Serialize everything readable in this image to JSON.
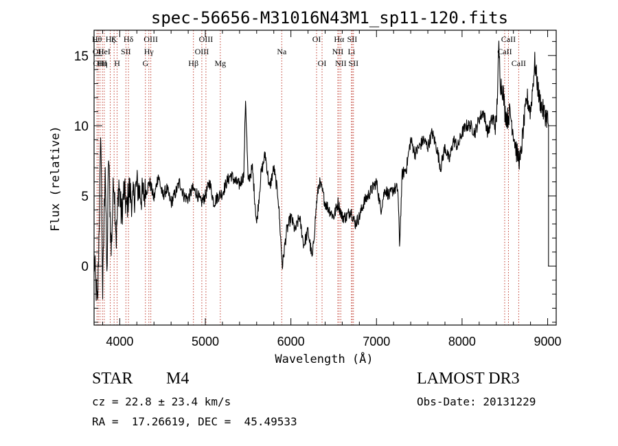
{
  "chart_data": {
    "type": "line",
    "title": "spec-56656-M31016N43M1_sp11-120.fits",
    "xlabel": "Wavelength (Å)",
    "ylabel": "Flux (relative)",
    "xlim": [
      3700,
      9100
    ],
    "ylim": [
      -4.2,
      16.8
    ],
    "xticks": [
      4000,
      5000,
      6000,
      7000,
      8000,
      9000
    ],
    "yticks": [
      0,
      5,
      10,
      15
    ],
    "series": [
      {
        "name": "flux",
        "x": [
          3700,
          3740,
          3780,
          3800,
          3830,
          3850,
          3870,
          3900,
          3930,
          3960,
          3990,
          4020,
          4050,
          4080,
          4110,
          4150,
          4200,
          4250,
          4300,
          4350,
          4400,
          4450,
          4500,
          4550,
          4600,
          4650,
          4700,
          4750,
          4800,
          4850,
          4900,
          4950,
          5000,
          5050,
          5100,
          5150,
          5200,
          5250,
          5300,
          5350,
          5400,
          5450,
          5470,
          5500,
          5550,
          5600,
          5650,
          5700,
          5750,
          5800,
          5850,
          5880,
          5900,
          5920,
          5950,
          6000,
          6050,
          6100,
          6150,
          6200,
          6250,
          6300,
          6330,
          6360,
          6400,
          6450,
          6500,
          6550,
          6600,
          6650,
          6700,
          6750,
          6800,
          6850,
          6900,
          6950,
          7000,
          7050,
          7100,
          7150,
          7200,
          7250,
          7270,
          7300,
          7350,
          7400,
          7450,
          7500,
          7550,
          7600,
          7650,
          7700,
          7750,
          7800,
          7850,
          7900,
          7950,
          8000,
          8050,
          8100,
          8150,
          8200,
          8250,
          8300,
          8350,
          8400,
          8430,
          8450,
          8480,
          8500,
          8530,
          8560,
          8600,
          8640,
          8680,
          8720,
          8760,
          8800,
          8850,
          8900,
          8950,
          9000,
          9010
        ],
        "y": [
          0.5,
          -3.0,
          9.5,
          -2.0,
          7.5,
          -1.0,
          8.0,
          1.0,
          6.5,
          2.0,
          6.0,
          3.5,
          5.5,
          4.0,
          5.5,
          4.5,
          5.8,
          5.0,
          5.2,
          6.0,
          4.8,
          6.5,
          5.0,
          5.5,
          4.5,
          5.2,
          6.0,
          5.0,
          4.8,
          5.5,
          5.2,
          4.5,
          5.0,
          6.0,
          4.5,
          5.0,
          5.2,
          6.0,
          6.5,
          6.0,
          5.8,
          6.5,
          12.0,
          6.0,
          7.0,
          3.0,
          6.5,
          8.0,
          5.5,
          7.0,
          5.0,
          2.0,
          0.0,
          1.0,
          2.5,
          3.5,
          2.5,
          3.5,
          1.5,
          2.5,
          0.5,
          4.5,
          6.0,
          5.5,
          4.5,
          4.0,
          3.5,
          4.5,
          3.5,
          3.5,
          4.0,
          3.0,
          3.5,
          4.5,
          5.0,
          5.5,
          6.0,
          4.0,
          5.5,
          5.0,
          5.5,
          5.5,
          1.5,
          6.5,
          7.0,
          9.0,
          8.0,
          8.5,
          9.0,
          8.5,
          9.5,
          8.5,
          7.0,
          8.5,
          7.5,
          9.0,
          8.5,
          9.5,
          10.0,
          10.0,
          9.5,
          10.5,
          11.0,
          9.5,
          10.5,
          10.0,
          15.5,
          13.0,
          12.5,
          11.0,
          10.5,
          11.0,
          9.5,
          8.0,
          7.5,
          10.0,
          12.0,
          11.0,
          14.5,
          12.0,
          11.0,
          10.5,
          10.0
        ]
      }
    ],
    "lines": [
      {
        "x": 3734,
        "label": "Hθ",
        "row": 0
      },
      {
        "x": 3750,
        "label": "OII",
        "row": 1
      },
      {
        "x": 3770,
        "label": "OIII",
        "row": 2
      },
      {
        "x": 3798,
        "label": "Hη",
        "row": 2
      },
      {
        "x": 3819,
        "label": "HeI",
        "row": 1
      },
      {
        "x": 3889,
        "label": "Hζ",
        "row": 0
      },
      {
        "x": 3934,
        "label": "K",
        "row": 0
      },
      {
        "x": 3969,
        "label": "H",
        "row": 2
      },
      {
        "x": 4072,
        "label": "SII",
        "row": 1
      },
      {
        "x": 4102,
        "label": "Hδ",
        "row": 0
      },
      {
        "x": 4300,
        "label": "G",
        "row": 2
      },
      {
        "x": 4340,
        "label": "Hγ",
        "row": 1
      },
      {
        "x": 4363,
        "label": "OIII",
        "row": 0
      },
      {
        "x": 4861,
        "label": "Hβ",
        "row": 2
      },
      {
        "x": 4959,
        "label": "OIII",
        "row": 1
      },
      {
        "x": 5007,
        "label": "OIII",
        "row": 0
      },
      {
        "x": 5175,
        "label": "Mg",
        "row": 2
      },
      {
        "x": 5893,
        "label": "Na",
        "row": 1
      },
      {
        "x": 6300,
        "label": "OI",
        "row": 0
      },
      {
        "x": 6364,
        "label": "OI",
        "row": 2
      },
      {
        "x": 6548,
        "label": "NII",
        "row": 1
      },
      {
        "x": 6563,
        "label": "Hα",
        "row": 0
      },
      {
        "x": 6583,
        "label": "NII",
        "row": 2
      },
      {
        "x": 6708,
        "label": "Li",
        "row": 1
      },
      {
        "x": 6716,
        "label": "SII",
        "row": 0
      },
      {
        "x": 6731,
        "label": "SII",
        "row": 2
      },
      {
        "x": 8498,
        "label": "CaII",
        "row": 1
      },
      {
        "x": 8542,
        "label": "CaII",
        "row": 0
      },
      {
        "x": 8662,
        "label": "CaII",
        "row": 2
      }
    ]
  },
  "info": {
    "object_class": "STAR",
    "subclass": "M4",
    "survey": "LAMOST DR3",
    "redshift_text": "cz = 22.8 ± 23.4 km/s",
    "obs_date": "Obs-Date: 20131229",
    "coords": "RA =  17.26619, DEC =  45.49533"
  },
  "colors": {
    "line_marker": "#c0392b",
    "spectrum": "#000000",
    "axes": "#000000"
  }
}
